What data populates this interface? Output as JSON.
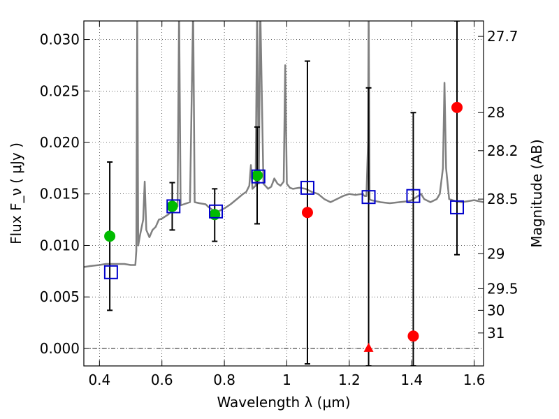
{
  "chart_data": {
    "type": "scatter",
    "title": "",
    "xlabel": "Wavelength  λ (μm)",
    "ylabel": "Flux  F_ν  ( μJy )",
    "y2label": "Magnitude (AB)",
    "xlim": [
      0.35,
      1.63
    ],
    "ylim": [
      -0.0017,
      0.0318
    ],
    "grid": true,
    "x_ticks": [
      0.4,
      0.6,
      0.8,
      1.0,
      1.2,
      1.4,
      1.6
    ],
    "x_tick_labels": [
      "0.4",
      "0.6",
      "0.8",
      "1",
      "1.2",
      "1.4",
      "1.6"
    ],
    "y_ticks": [
      0.0,
      0.005,
      0.01,
      0.015,
      0.02,
      0.025,
      0.03
    ],
    "y_tick_labels": [
      "0.000",
      "0.005",
      "0.010",
      "0.015",
      "0.020",
      "0.025",
      "0.030"
    ],
    "y2_ticks": [
      {
        "label": "27.7",
        "flux": 0.0303
      },
      {
        "label": "28",
        "flux": 0.0229
      },
      {
        "label": "28.2",
        "flux": 0.0192
      },
      {
        "label": "28.5",
        "flux": 0.0145
      },
      {
        "label": "29",
        "flux": 0.0092
      },
      {
        "label": "29.5",
        "flux": 0.0058
      },
      {
        "label": "30",
        "flux": 0.0037
      },
      {
        "label": "31",
        "flux": 0.0015
      }
    ],
    "colors": {
      "model": "#808080",
      "model_points": "#0000cc",
      "detections": "#00bb00",
      "upper_limits": "#ff0000",
      "errorbars": "#000000"
    },
    "series": [
      {
        "kind": "line",
        "points": [
          [
            0.35,
            0.0079
          ],
          [
            0.37,
            0.008
          ],
          [
            0.4,
            0.0081
          ],
          [
            0.42,
            0.0082
          ],
          [
            0.44,
            0.0082
          ],
          [
            0.46,
            0.0082
          ],
          [
            0.48,
            0.0082
          ],
          [
            0.5,
            0.0081
          ],
          [
            0.515,
            0.0081
          ],
          [
            0.518,
            0.0095
          ],
          [
            0.521,
            0.033
          ],
          [
            0.524,
            0.01
          ],
          [
            0.53,
            0.011
          ],
          [
            0.54,
            0.0125
          ],
          [
            0.545,
            0.0162
          ],
          [
            0.55,
            0.0115
          ],
          [
            0.56,
            0.0108
          ],
          [
            0.57,
            0.0115
          ],
          [
            0.58,
            0.0118
          ],
          [
            0.59,
            0.0125
          ],
          [
            0.6,
            0.0126
          ],
          [
            0.62,
            0.013
          ],
          [
            0.64,
            0.0136
          ],
          [
            0.65,
            0.0138
          ],
          [
            0.655,
            0.033
          ],
          [
            0.66,
            0.0139
          ],
          [
            0.67,
            0.014
          ],
          [
            0.69,
            0.0142
          ],
          [
            0.7,
            0.033
          ],
          [
            0.705,
            0.0142
          ],
          [
            0.72,
            0.0141
          ],
          [
            0.74,
            0.014
          ],
          [
            0.75,
            0.0137
          ],
          [
            0.76,
            0.0135
          ],
          [
            0.77,
            0.0132
          ],
          [
            0.78,
            0.0133
          ],
          [
            0.8,
            0.0136
          ],
          [
            0.82,
            0.014
          ],
          [
            0.84,
            0.0145
          ],
          [
            0.86,
            0.015
          ],
          [
            0.87,
            0.0152
          ],
          [
            0.88,
            0.0158
          ],
          [
            0.885,
            0.0178
          ],
          [
            0.89,
            0.0155
          ],
          [
            0.9,
            0.0158
          ],
          [
            0.905,
            0.033
          ],
          [
            0.91,
            0.016
          ],
          [
            0.915,
            0.033
          ],
          [
            0.925,
            0.016
          ],
          [
            0.94,
            0.0155
          ],
          [
            0.95,
            0.0157
          ],
          [
            0.96,
            0.0165
          ],
          [
            0.97,
            0.016
          ],
          [
            0.98,
            0.0158
          ],
          [
            0.99,
            0.0162
          ],
          [
            0.995,
            0.0275
          ],
          [
            1.0,
            0.016
          ],
          [
            1.01,
            0.0156
          ],
          [
            1.02,
            0.0155
          ],
          [
            1.04,
            0.0156
          ],
          [
            1.06,
            0.0155
          ],
          [
            1.08,
            0.0152
          ],
          [
            1.1,
            0.015
          ],
          [
            1.12,
            0.0145
          ],
          [
            1.14,
            0.0142
          ],
          [
            1.16,
            0.0145
          ],
          [
            1.18,
            0.0148
          ],
          [
            1.2,
            0.015
          ],
          [
            1.22,
            0.0149
          ],
          [
            1.24,
            0.015
          ],
          [
            1.25,
            0.0148
          ],
          [
            1.255,
            0.0148
          ],
          [
            1.26,
            0.02
          ],
          [
            1.262,
            0.033
          ],
          [
            1.265,
            0.0145
          ],
          [
            1.27,
            0.0144
          ],
          [
            1.3,
            0.0142
          ],
          [
            1.33,
            0.0141
          ],
          [
            1.36,
            0.0142
          ],
          [
            1.39,
            0.0143
          ],
          [
            1.4,
            0.0144
          ],
          [
            1.42,
            0.0148
          ],
          [
            1.43,
            0.015
          ],
          [
            1.44,
            0.0145
          ],
          [
            1.46,
            0.0142
          ],
          [
            1.48,
            0.0145
          ],
          [
            1.49,
            0.015
          ],
          [
            1.5,
            0.0175
          ],
          [
            1.505,
            0.0258
          ],
          [
            1.51,
            0.0175
          ],
          [
            1.52,
            0.0145
          ],
          [
            1.54,
            0.0143
          ],
          [
            1.56,
            0.0142
          ],
          [
            1.58,
            0.0143
          ],
          [
            1.6,
            0.0144
          ],
          [
            1.63,
            0.0142
          ]
        ]
      },
      {
        "kind": "model_points",
        "x": [
          0.437,
          0.637,
          0.773,
          0.909,
          1.066,
          1.262,
          1.405,
          1.545
        ],
        "y": [
          0.0074,
          0.0138,
          0.0133,
          0.0167,
          0.0156,
          0.0147,
          0.0148,
          0.0137
        ]
      },
      {
        "kind": "detections",
        "x": [
          0.433,
          0.633,
          0.769,
          0.905
        ],
        "y": [
          0.0109,
          0.0138,
          0.013,
          0.0168
        ]
      },
      {
        "kind": "upper_limits",
        "x": [
          1.066,
          1.405,
          1.545
        ],
        "y": [
          0.0132,
          0.0012,
          0.0234
        ]
      },
      {
        "kind": "upper_limit_marker",
        "x": [
          1.262
        ],
        "y": [
          0.0
        ]
      },
      {
        "kind": "errorbars",
        "items": [
          {
            "x": 0.433,
            "y_low": 0.0037,
            "y_high": 0.0181
          },
          {
            "x": 0.633,
            "y_low": 0.0115,
            "y_high": 0.0161
          },
          {
            "x": 0.769,
            "y_low": 0.0104,
            "y_high": 0.0155
          },
          {
            "x": 0.905,
            "y_low": 0.0121,
            "y_high": 0.0215
          },
          {
            "x": 1.066,
            "y_low": -0.0015,
            "y_high": 0.0279
          },
          {
            "x": 1.262,
            "y_low": -0.0017,
            "y_high": 0.0253
          },
          {
            "x": 1.405,
            "y_low": -0.0017,
            "y_high": 0.0229
          },
          {
            "x": 1.545,
            "y_low": 0.0091,
            "y_high": 0.0318
          }
        ]
      }
    ]
  }
}
